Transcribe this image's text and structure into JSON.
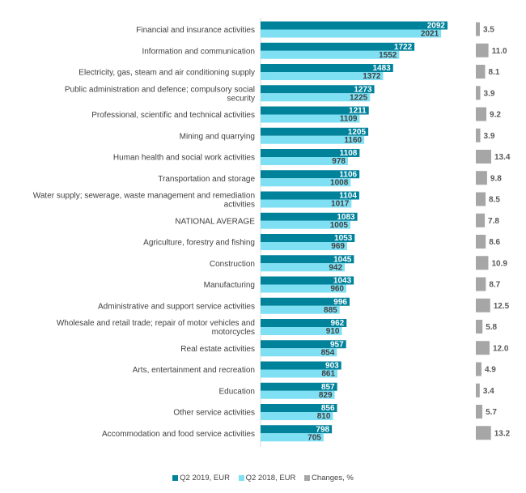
{
  "chart_data": {
    "type": "bar",
    "orientation": "horizontal",
    "categories": [
      "Financial and insurance activities",
      "Information and communication",
      "Electricity, gas, steam and air conditioning supply",
      "Public administration and defence; compulsory social security",
      "Professional, scientific and technical activities",
      "Mining and quarrying",
      "Human health and social work activities",
      "Transportation and storage",
      "Water supply; sewerage, waste management and remediation activities",
      "NATIONAL AVERAGE",
      "Agriculture, forestry and fishing",
      "Construction",
      "Manufacturing",
      "Administrative and support service activities",
      "Wholesale and retail trade; repair of motor vehicles and motorcycles",
      "Real estate activities",
      "Arts, entertainment and recreation",
      "Education",
      "Other service activities",
      "Accommodation and food service activities"
    ],
    "series": [
      {
        "name": "Q2 2019, EUR",
        "color": "#00829b",
        "values": [
          2092,
          1722,
          1483,
          1273,
          1211,
          1205,
          1108,
          1106,
          1104,
          1083,
          1053,
          1045,
          1043,
          996,
          962,
          957,
          903,
          857,
          856,
          798
        ]
      },
      {
        "name": "Q2 2018, EUR",
        "color": "#7fe0f4",
        "values": [
          2021,
          1552,
          1372,
          1225,
          1109,
          1160,
          978,
          1008,
          1017,
          1005,
          969,
          942,
          960,
          885,
          910,
          854,
          861,
          829,
          810,
          705
        ]
      },
      {
        "name": "Changes, %",
        "color": "#a6a6a6",
        "values": [
          3.5,
          11.0,
          8.1,
          3.9,
          9.2,
          3.9,
          13.4,
          9.8,
          8.5,
          7.8,
          8.6,
          10.9,
          8.7,
          12.5,
          5.8,
          12.0,
          4.9,
          3.4,
          5.7,
          13.2
        ]
      }
    ],
    "legend": "bottom",
    "grid": false
  }
}
